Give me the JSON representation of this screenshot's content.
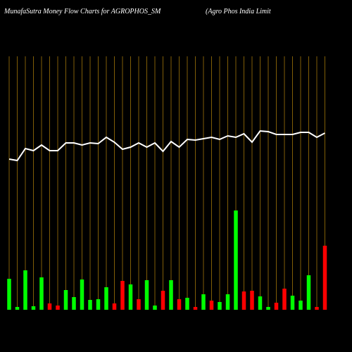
{
  "chart_data": {
    "type": "money-flow",
    "title": "MunafaSutra  Money Flow  Charts for AGROPHOS_SM",
    "subtitle": "(Agro   Phos India  Limit",
    "grid_color": "#b8860b",
    "ylim": [
      0,
      150
    ],
    "y2lim": [
      0,
      440
    ],
    "series": [
      {
        "type": "bar",
        "values": [
          44,
          4,
          56,
          5,
          46,
          9,
          6,
          28,
          18,
          43,
          14,
          15,
          32,
          9,
          41,
          36,
          15,
          42,
          6,
          27,
          42,
          15,
          17,
          4,
          22,
          13,
          11,
          22,
          141,
          26,
          27,
          19,
          4,
          10,
          30,
          20,
          13,
          49,
          4,
          91
        ],
        "colors": [
          "#00ff00",
          "#00ff00",
          "#00ff00",
          "#00ff00",
          "#00ff00",
          "#ff0000",
          "#ff0000",
          "#00ff00",
          "#00ff00",
          "#00ff00",
          "#00ff00",
          "#00ff00",
          "#00ff00",
          "#ff0000",
          "#ff0000",
          "#00ff00",
          "#ff0000",
          "#00ff00",
          "#00ff00",
          "#ff0000",
          "#00ff00",
          "#ff0000",
          "#00ff00",
          "#ff0000",
          "#00ff00",
          "#ff0000",
          "#00ff00",
          "#00ff00",
          "#00ff00",
          "#ff0000",
          "#ff0000",
          "#00ff00",
          "#00ff00",
          "#ff0000",
          "#ff0000",
          "#00ff00",
          "#00ff00",
          "#00ff00",
          "#ff0000",
          "#ff0000"
        ]
      },
      {
        "type": "line",
        "axis": "y2",
        "color": "#ffffff",
        "values": [
          214,
          212,
          229,
          226,
          234,
          226,
          226,
          237,
          237,
          234,
          237,
          236,
          245,
          238,
          228,
          231,
          237,
          231,
          237,
          225,
          239,
          231,
          242,
          241,
          243,
          245,
          242,
          247,
          245,
          250,
          238,
          254,
          253,
          249,
          249,
          249,
          252,
          252,
          245,
          251
        ]
      }
    ]
  }
}
